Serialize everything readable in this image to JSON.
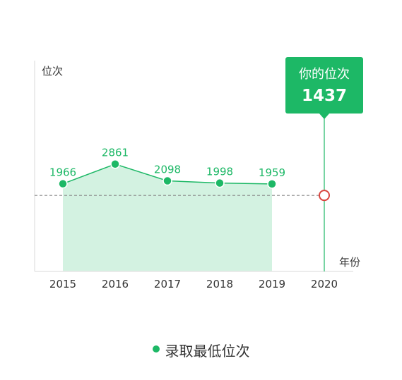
{
  "chart_data": {
    "type": "area",
    "ylabel": "位次",
    "xlabel": "年份",
    "categories": [
      "2015",
      "2016",
      "2017",
      "2018",
      "2019",
      "2020"
    ],
    "series": [
      {
        "name": "录取最低位次",
        "values": [
          1966,
          2861,
          2098,
          1998,
          1959,
          null
        ]
      }
    ],
    "data_labels": [
      "1966",
      "2861",
      "2098",
      "1998",
      "1959"
    ],
    "your_rank": {
      "category": "2020",
      "label": "你的位次",
      "value": 1437,
      "value_text": "1437"
    },
    "ylim": [
      0,
      4000
    ],
    "grid": false,
    "legend_position": "bottom"
  },
  "colors": {
    "line": "#1db866",
    "area": "#d3f2e1",
    "axis": "#e6e6e6",
    "tooltip_bg": "#1db866",
    "marker_ring": "#d9443e",
    "reference_dash": "#888888",
    "tick_text": "#333333"
  }
}
